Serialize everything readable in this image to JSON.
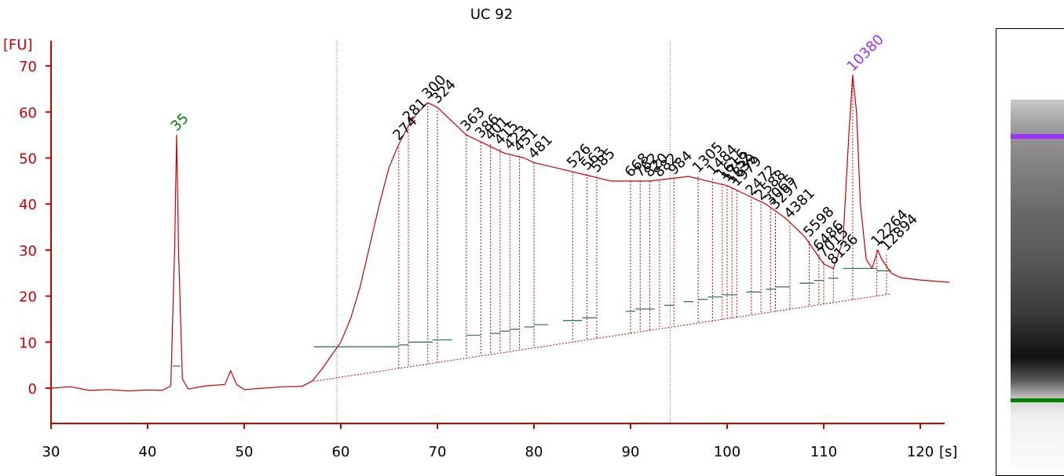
{
  "chart_data": {
    "type": "line",
    "title": "UC 92",
    "ylabel": "[FU]",
    "xlabel": "[s]",
    "xlim": [
      30,
      123
    ],
    "ylim": [
      -8,
      74
    ],
    "xticks": [
      "30",
      "40",
      "50",
      "60",
      "70",
      "80",
      "90",
      "100",
      "110",
      "120"
    ],
    "yticks": [
      "0",
      "10",
      "20",
      "30",
      "40",
      "50",
      "60",
      "70"
    ],
    "colors": {
      "trace": "#cc0000",
      "axis": "#cc0000",
      "lower_marker": "#008000",
      "upper_marker": "#9b30ff",
      "peak_label": "#000000",
      "baseline": "#2e7d5b",
      "region_line": "#6a6ae0"
    },
    "region_lines_x": [
      59.6,
      94.1
    ],
    "trace": [
      [
        30,
        0
      ],
      [
        32,
        0.3
      ],
      [
        34,
        -0.5
      ],
      [
        36,
        -0.3
      ],
      [
        38,
        -0.6
      ],
      [
        40,
        -0.4
      ],
      [
        41.5,
        -0.5
      ],
      [
        42.4,
        0.5
      ],
      [
        42.8,
        30
      ],
      [
        43.0,
        55
      ],
      [
        43.2,
        30
      ],
      [
        43.6,
        2
      ],
      [
        44.2,
        -0.2
      ],
      [
        46,
        0.5
      ],
      [
        48,
        0.8
      ],
      [
        48.6,
        3.8
      ],
      [
        49.2,
        0.8
      ],
      [
        50,
        -0.3
      ],
      [
        52,
        0
      ],
      [
        54,
        0.3
      ],
      [
        56,
        0.4
      ],
      [
        57,
        1.5
      ],
      [
        58,
        4
      ],
      [
        59,
        7
      ],
      [
        60,
        10
      ],
      [
        61,
        15
      ],
      [
        62,
        22
      ],
      [
        63,
        31
      ],
      [
        64,
        40
      ],
      [
        65,
        48
      ],
      [
        66,
        53
      ],
      [
        67,
        57
      ],
      [
        68,
        60
      ],
      [
        69,
        62
      ],
      [
        70,
        61
      ],
      [
        71,
        59
      ],
      [
        72,
        57
      ],
      [
        73,
        55
      ],
      [
        74,
        54
      ],
      [
        75,
        53
      ],
      [
        76,
        52
      ],
      [
        77,
        51
      ],
      [
        78,
        50.5
      ],
      [
        79,
        50
      ],
      [
        80,
        49
      ],
      [
        82,
        48
      ],
      [
        84,
        47
      ],
      [
        86,
        46
      ],
      [
        88,
        45
      ],
      [
        90,
        45
      ],
      [
        92,
        45
      ],
      [
        94,
        45.5
      ],
      [
        96,
        46
      ],
      [
        98,
        45
      ],
      [
        100,
        44
      ],
      [
        102,
        42
      ],
      [
        104,
        40
      ],
      [
        106,
        37
      ],
      [
        108,
        33
      ],
      [
        109,
        30
      ],
      [
        110,
        27
      ],
      [
        111,
        26
      ],
      [
        112,
        32
      ],
      [
        112.6,
        55
      ],
      [
        113,
        68
      ],
      [
        113.4,
        60
      ],
      [
        113.8,
        40
      ],
      [
        114.4,
        28
      ],
      [
        115,
        26
      ],
      [
        115.6,
        30
      ],
      [
        116,
        28
      ],
      [
        117,
        25
      ],
      [
        118,
        24
      ],
      [
        120,
        23.5
      ],
      [
        123,
        23
      ]
    ],
    "baseline_segments": [
      [
        57.2,
        66.0,
        9.0
      ],
      [
        66.0,
        67.0,
        9.4
      ],
      [
        67.0,
        69.5,
        10.0
      ],
      [
        69.5,
        71.5,
        10.5
      ],
      [
        73.0,
        74.5,
        11.5
      ],
      [
        75.5,
        76.5,
        11.9
      ],
      [
        76.5,
        77.5,
        12.4
      ],
      [
        77.5,
        78.5,
        12.8
      ],
      [
        79.0,
        80.0,
        13.3
      ],
      [
        80.0,
        81.5,
        13.8
      ],
      [
        83.0,
        85.0,
        14.7
      ],
      [
        85.0,
        86.5,
        15.3
      ],
      [
        89.5,
        90.5,
        16.7
      ],
      [
        90.5,
        92.5,
        17.2
      ],
      [
        93.5,
        94.5,
        18.0
      ],
      [
        95.5,
        96.5,
        18.8
      ],
      [
        97.0,
        98.0,
        19.3
      ],
      [
        98.0,
        99.5,
        19.8
      ],
      [
        99.5,
        101.0,
        20.3
      ],
      [
        102.0,
        103.5,
        20.9
      ],
      [
        104.0,
        105.0,
        21.5
      ],
      [
        105.0,
        106.5,
        22.0
      ],
      [
        107.5,
        109.0,
        22.8
      ],
      [
        109.0,
        110.0,
        23.4
      ],
      [
        110.5,
        111.5,
        23.9
      ],
      [
        112.0,
        115.5,
        26.0
      ],
      [
        115.5,
        117.0,
        25.5
      ]
    ],
    "peaks": [
      {
        "label": "35",
        "x": 43.0,
        "y": 55,
        "color": "green"
      },
      {
        "label": "274",
        "x": 66.0,
        "y": 53
      },
      {
        "label": "281",
        "x": 67.0,
        "y": 57
      },
      {
        "label": "300",
        "x": 69.0,
        "y": 62
      },
      {
        "label": "324",
        "x": 70.0,
        "y": 61
      },
      {
        "label": "363",
        "x": 73.0,
        "y": 55
      },
      {
        "label": "386",
        "x": 74.5,
        "y": 53.5
      },
      {
        "label": "401",
        "x": 75.5,
        "y": 53
      },
      {
        "label": "415",
        "x": 76.5,
        "y": 52
      },
      {
        "label": "423",
        "x": 77.5,
        "y": 51
      },
      {
        "label": "451",
        "x": 78.5,
        "y": 50.5
      },
      {
        "label": "481",
        "x": 80.0,
        "y": 49
      },
      {
        "label": "526",
        "x": 84.0,
        "y": 47
      },
      {
        "label": "563",
        "x": 85.5,
        "y": 46.5
      },
      {
        "label": "585",
        "x": 86.5,
        "y": 46
      },
      {
        "label": "668",
        "x": 90.0,
        "y": 45
      },
      {
        "label": "762",
        "x": 91.0,
        "y": 45
      },
      {
        "label": "820",
        "x": 92.0,
        "y": 45
      },
      {
        "label": "882",
        "x": 93.0,
        "y": 45
      },
      {
        "label": "984",
        "x": 94.5,
        "y": 45.5
      },
      {
        "label": "1305",
        "x": 97.0,
        "y": 46
      },
      {
        "label": "1484",
        "x": 98.5,
        "y": 45.5
      },
      {
        "label": "1616",
        "x": 99.5,
        "y": 44.5
      },
      {
        "label": "1752",
        "x": 100.0,
        "y": 44
      },
      {
        "label": "1839",
        "x": 100.5,
        "y": 43.5
      },
      {
        "label": "1979",
        "x": 101.0,
        "y": 43
      },
      {
        "label": "2472",
        "x": 102.5,
        "y": 41
      },
      {
        "label": "2588",
        "x": 103.5,
        "y": 40
      },
      {
        "label": "3065",
        "x": 104.5,
        "y": 39
      },
      {
        "label": "3297",
        "x": 105.0,
        "y": 38
      },
      {
        "label": "4381",
        "x": 106.5,
        "y": 36
      },
      {
        "label": "5598",
        "x": 108.5,
        "y": 32
      },
      {
        "label": "6486",
        "x": 109.5,
        "y": 29
      },
      {
        "label": "7015",
        "x": 110.0,
        "y": 27.5
      },
      {
        "label": "8136",
        "x": 111.0,
        "y": 26
      },
      {
        "label": "10380",
        "x": 113.0,
        "y": 68,
        "color": "purple"
      },
      {
        "label": "12264",
        "x": 115.5,
        "y": 30
      },
      {
        "label": "12894",
        "x": 116.5,
        "y": 29
      }
    ]
  },
  "gel": {
    "ladder_color_upper": "#9b30ff",
    "ladder_color_lower": "#008000"
  }
}
